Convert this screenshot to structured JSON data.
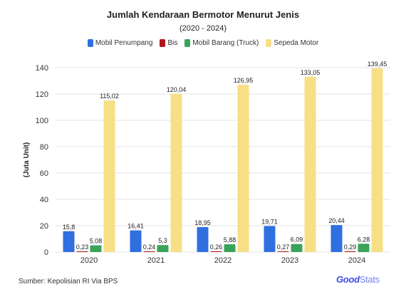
{
  "chart_data": {
    "type": "bar",
    "title": "Jumlah Kendaraan Bermotor Menurut Jenis",
    "subtitle": "(2020 - 2024)",
    "ylabel": "(Juta Unit)",
    "xlabel": "",
    "ylim": [
      0,
      140
    ],
    "yticks": [
      0,
      20,
      40,
      60,
      80,
      100,
      120,
      140
    ],
    "grid": true,
    "legend_position": "top",
    "categories": [
      "2020",
      "2021",
      "2022",
      "2023",
      "2024"
    ],
    "series": [
      {
        "name": "Mobil Penumpang",
        "color": "#2f6fe0",
        "values": [
          15.8,
          16.41,
          18.95,
          19.71,
          20.44
        ],
        "labels": [
          "15,8",
          "16,41",
          "18,95",
          "19,71",
          "20,44"
        ]
      },
      {
        "name": "Bis",
        "color": "#b0161b",
        "values": [
          0.23,
          0.24,
          0.26,
          0.27,
          0.29
        ],
        "labels": [
          "0,23",
          "0,24",
          "0,26",
          "0,27",
          "0,29"
        ]
      },
      {
        "name": "Mobil Barang (Truck)",
        "color": "#3aa35a",
        "values": [
          5.08,
          5.3,
          5.88,
          6.09,
          6.28
        ],
        "labels": [
          "5,08",
          "5,3",
          "5,88",
          "6,09",
          "6,28"
        ]
      },
      {
        "name": "Sepeda Motor",
        "color": "#f7df86",
        "values": [
          115.02,
          120.04,
          126.95,
          133.05,
          139.45
        ],
        "labels": [
          "115,02",
          "120,04",
          "126,95",
          "133,05",
          "139,45"
        ]
      }
    ]
  },
  "footer": {
    "source": "Sumber: Kepolisian RI Via BPS",
    "logo_part1": "Good",
    "logo_part2": "Stats"
  }
}
